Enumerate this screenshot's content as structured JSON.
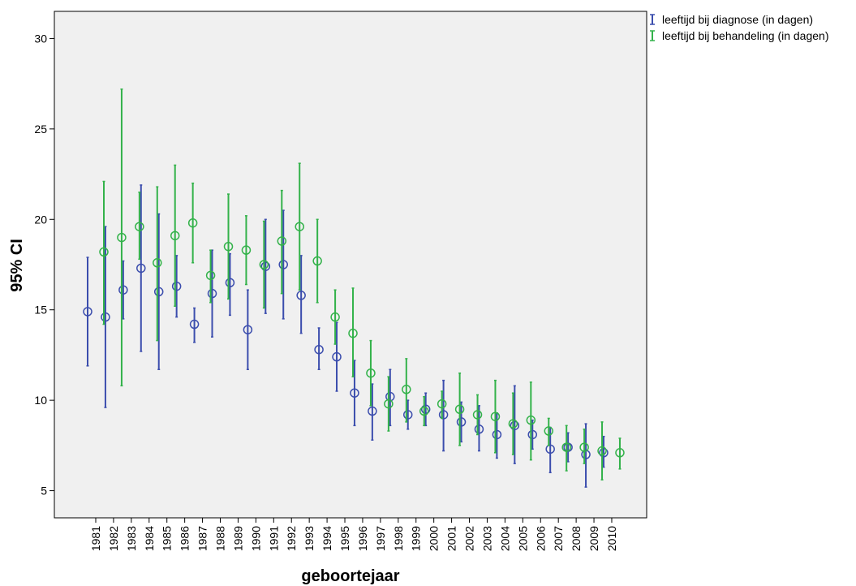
{
  "chart_data": {
    "type": "errorbar",
    "title": "",
    "xlabel": "geboortejaar",
    "ylabel": "95% CI",
    "ylim": [
      3.5,
      31.5
    ],
    "yticks": [
      5,
      10,
      15,
      20,
      25,
      30
    ],
    "grid": false,
    "legend_position": "top-right-outside",
    "categories": [
      "1981",
      "1982",
      "1983",
      "1984",
      "1985",
      "1986",
      "1987",
      "1988",
      "1989",
      "1990",
      "1991",
      "1992",
      "1993",
      "1994",
      "1995",
      "1996",
      "1997",
      "1998",
      "1999",
      "2000",
      "2001",
      "2002",
      "2003",
      "2004",
      "2005",
      "2006",
      "2007",
      "2008",
      "2009",
      "2010"
    ],
    "series": [
      {
        "name": "leeftijd bij diagnose (in dagen)",
        "color": "#3b4dad",
        "mean": [
          14.9,
          14.6,
          16.1,
          17.3,
          16.0,
          16.3,
          14.2,
          15.9,
          16.5,
          13.9,
          17.4,
          17.5,
          15.8,
          12.8,
          12.4,
          10.4,
          9.4,
          10.2,
          9.2,
          9.5,
          9.2,
          8.8,
          8.4,
          8.1,
          8.6,
          8.1,
          7.3,
          7.4,
          7.0,
          7.1
        ],
        "lower": [
          11.9,
          9.6,
          14.5,
          12.7,
          11.7,
          14.6,
          13.2,
          13.5,
          14.7,
          11.7,
          14.8,
          14.5,
          13.7,
          11.7,
          10.5,
          8.6,
          7.8,
          8.6,
          8.4,
          8.6,
          7.2,
          7.7,
          7.2,
          6.8,
          6.5,
          7.3,
          6.0,
          6.6,
          5.2,
          6.3
        ],
        "upper": [
          17.9,
          19.6,
          17.7,
          21.9,
          20.3,
          18.0,
          15.1,
          18.3,
          18.1,
          16.1,
          20.0,
          20.5,
          18.0,
          14.0,
          14.3,
          12.2,
          10.9,
          11.7,
          10.0,
          10.4,
          11.1,
          9.9,
          9.7,
          9.3,
          10.8,
          8.9,
          8.5,
          8.2,
          8.7,
          8.0
        ]
      },
      {
        "name": "leeftijd bij behandeling (in dagen)",
        "color": "#33b24a",
        "mean": [
          18.2,
          19.0,
          19.6,
          17.6,
          19.1,
          19.8,
          16.9,
          18.5,
          18.3,
          17.5,
          18.8,
          19.6,
          17.7,
          14.6,
          13.7,
          11.5,
          9.8,
          10.6,
          9.4,
          9.8,
          9.5,
          9.2,
          9.1,
          8.7,
          8.9,
          8.3,
          7.4,
          7.4,
          7.2,
          7.1
        ],
        "lower": [
          14.2,
          10.8,
          17.8,
          13.3,
          15.2,
          17.6,
          15.4,
          15.6,
          16.4,
          15.1,
          15.9,
          16.1,
          15.4,
          13.1,
          11.3,
          9.7,
          8.3,
          8.8,
          8.6,
          9.0,
          7.5,
          8.1,
          7.1,
          7.0,
          6.7,
          7.5,
          6.1,
          6.5,
          5.6,
          6.2
        ],
        "upper": [
          22.1,
          27.2,
          21.5,
          21.8,
          23.0,
          22.0,
          18.3,
          21.4,
          20.2,
          19.9,
          21.6,
          23.1,
          20.0,
          16.1,
          16.2,
          13.3,
          11.3,
          12.3,
          10.2,
          10.5,
          11.5,
          10.3,
          11.1,
          10.4,
          11.0,
          9.0,
          8.6,
          8.4,
          8.8,
          7.9
        ]
      }
    ],
    "plot_background": "#f0f0f0"
  }
}
